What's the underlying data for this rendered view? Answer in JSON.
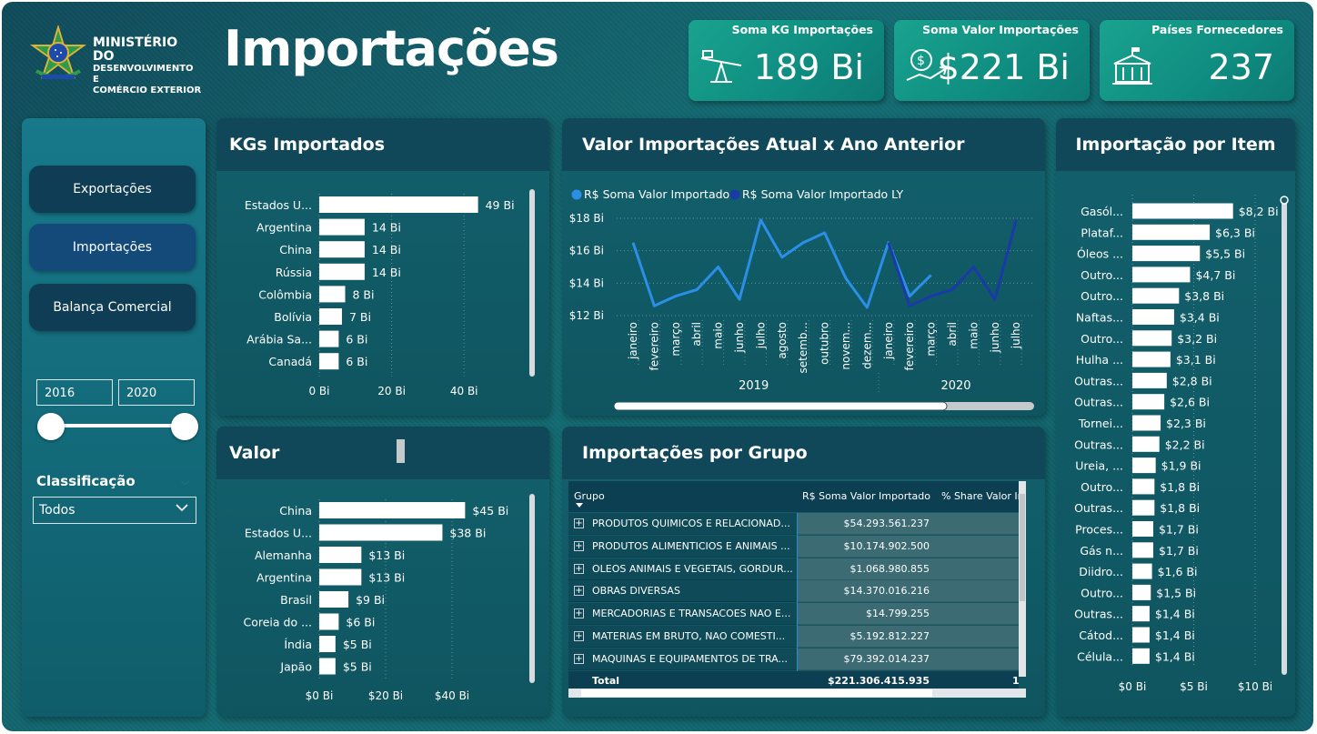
{
  "header": {
    "logo_line1": "MINISTÉRIO DO",
    "logo_line2": "DESENVOLVIMENTO E",
    "logo_line3": "COMÉRCIO EXTERIOR",
    "title": "Importações"
  },
  "kpis": [
    {
      "label": "Soma KG Importações",
      "value": "189 Bi",
      "icon": "scale-icon"
    },
    {
      "label": "Soma Valor Importações",
      "value": "$221 Bi",
      "icon": "money-hand-icon"
    },
    {
      "label": "Países Fornecedores",
      "value": "237",
      "icon": "government-building-icon"
    }
  ],
  "nav": {
    "exportacoes": "Exportações",
    "importacoes": "Importações",
    "balanca": "Balança Comercial"
  },
  "filters": {
    "year_start": "2016",
    "year_end": "2020",
    "year_range": [
      2016,
      2020
    ],
    "classificacao_label": "Classificação",
    "classificacao_value": "Todos"
  },
  "panels": {
    "kgs_title": "KGs Importados",
    "valor_title": "Valor",
    "linha_title": "Valor Importações Atual x Ano Anterior",
    "grupo_title": "Importações por Grupo",
    "item_title": "Importação por Item"
  },
  "chart_data": [
    {
      "type": "bar",
      "orientation": "horizontal",
      "title": "KGs Importados",
      "categories": [
        "Estados U...",
        "Argentina",
        "China",
        "Rússia",
        "Colômbia",
        "Bolívia",
        "Arábia Sa...",
        "Canadá"
      ],
      "values": [
        49,
        14,
        14,
        14,
        8,
        7,
        6,
        6
      ],
      "data_labels": [
        "49 Bi",
        "14 Bi",
        "14 Bi",
        "14 Bi",
        "8 Bi",
        "7 Bi",
        "6 Bi",
        "6 Bi"
      ],
      "xticks": [
        "0 Bi",
        "20 Bi",
        "40 Bi"
      ],
      "xlim": [
        0,
        55
      ]
    },
    {
      "type": "bar",
      "orientation": "horizontal",
      "title": "Valor",
      "categories": [
        "China",
        "Estados U...",
        "Alemanha",
        "Argentina",
        "Brasil",
        "Coreia do ...",
        "Índia",
        "Japão"
      ],
      "values": [
        45,
        38,
        13,
        13,
        9,
        6,
        5,
        5
      ],
      "data_labels": [
        "$45 Bi",
        "$38 Bi",
        "$13 Bi",
        "$13 Bi",
        "$9 Bi",
        "$6 Bi",
        "$5 Bi",
        "$5 Bi"
      ],
      "xticks": [
        "$0 Bi",
        "$20 Bi",
        "$40 Bi"
      ],
      "xlim": [
        0,
        55
      ]
    },
    {
      "type": "line",
      "title": "Valor Importações Atual x Ano Anterior",
      "legend": [
        "R$ Soma Valor Importado",
        "R$ Soma Valor Importado LY"
      ],
      "legend_position": "top-left",
      "colors": [
        "#2b8fe8",
        "#1a3aa8"
      ],
      "x": [
        "janeiro",
        "fevereiro",
        "março",
        "abril",
        "maio",
        "junho",
        "julho",
        "agosto",
        "setemb...",
        "outubro",
        "novem...",
        "dezem...",
        "janeiro",
        "fevereiro",
        "março",
        "abril",
        "maio",
        "junho",
        "julho"
      ],
      "year_groups": [
        {
          "label": "2019",
          "count": 12
        },
        {
          "label": "2020",
          "count": 7
        }
      ],
      "yticks": [
        "$18 Bi",
        "$16 Bi",
        "$14 Bi",
        "$12 Bi"
      ],
      "ylim": [
        12,
        18
      ],
      "series": [
        {
          "name": "R$ Soma Valor Importado",
          "values": [
            16.5,
            12.6,
            13.2,
            13.6,
            15.0,
            13.0,
            17.9,
            15.6,
            16.5,
            17.1,
            14.3,
            12.5,
            16.5,
            13.2,
            14.5,
            null,
            null,
            null,
            null
          ]
        },
        {
          "name": "R$ Soma Valor Importado LY",
          "values": [
            null,
            null,
            null,
            null,
            null,
            null,
            null,
            null,
            null,
            null,
            null,
            null,
            16.5,
            12.6,
            13.2,
            13.6,
            15.0,
            13.0,
            17.9
          ]
        }
      ]
    },
    {
      "type": "bar",
      "orientation": "horizontal",
      "title": "Importação por Item",
      "categories": [
        "Gasól...",
        "Plataf...",
        "Óleos ...",
        "Outro...",
        "Outro...",
        "Naftas...",
        "Outro...",
        "Hulha ...",
        "Outras...",
        "Outras...",
        "Tornei...",
        "Outras...",
        "Ureia, ...",
        "Outro...",
        "Outras...",
        "Proces...",
        "Gás n...",
        "Diidro...",
        "Outro...",
        "Outras...",
        "Cátod...",
        "Célula..."
      ],
      "values": [
        8.2,
        6.3,
        5.5,
        4.7,
        3.8,
        3.4,
        3.2,
        3.1,
        2.8,
        2.6,
        2.3,
        2.2,
        1.9,
        1.8,
        1.8,
        1.7,
        1.7,
        1.6,
        1.5,
        1.4,
        1.4,
        1.4
      ],
      "data_labels": [
        "$8,2 Bi",
        "$6,3 Bi",
        "$5,5 Bi",
        "$4,7 Bi",
        "$3,8 Bi",
        "$3,4 Bi",
        "$3,2 Bi",
        "$3,1 Bi",
        "$2,8 Bi",
        "$2,6 Bi",
        "$2,3 Bi",
        "$2,2 Bi",
        "$1,9 Bi",
        "$1,8 Bi",
        "$1,8 Bi",
        "$1,7 Bi",
        "$1,7 Bi",
        "$1,6 Bi",
        "$1,5 Bi",
        "$1,4 Bi",
        "$1,4 Bi",
        "$1,4 Bi"
      ],
      "xticks": [
        "$0 Bi",
        "$5 Bi",
        "$10 Bi"
      ],
      "xlim": [
        0,
        10
      ]
    },
    {
      "type": "table",
      "title": "Importações por Grupo",
      "columns": [
        "Grupo",
        "R$ Soma Valor Importado",
        "% Share Valor Imp"
      ],
      "rows": [
        [
          "PRODUTOS QUIMICOS E RELACIONAD...",
          "$54.293.561.237",
          ""
        ],
        [
          "PRODUTOS ALIMENTICIOS E ANIMAIS ...",
          "$10.174.902.500",
          ""
        ],
        [
          "OLEOS ANIMAIS E VEGETAIS, GORDUR...",
          "$1.068.980.855",
          ""
        ],
        [
          "OBRAS DIVERSAS",
          "$14.370.016.216",
          ""
        ],
        [
          "MERCADORIAS E TRANSACOES NAO E...",
          "$14.799.255",
          ""
        ],
        [
          "MATERIAS EM BRUTO, NAO COMESTI...",
          "$5.192.812.227",
          ""
        ],
        [
          "MAQUINAS E EQUIPAMENTOS DE TRA...",
          "$79.392.014.237",
          ""
        ]
      ],
      "total": [
        "Total",
        "$221.306.415.935",
        "1"
      ]
    }
  ]
}
